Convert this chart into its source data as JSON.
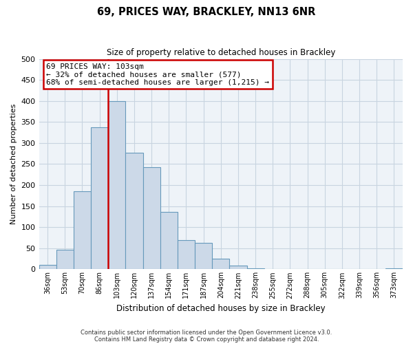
{
  "title": "69, PRICES WAY, BRACKLEY, NN13 6NR",
  "subtitle": "Size of property relative to detached houses in Brackley",
  "xlabel": "Distribution of detached houses by size in Brackley",
  "ylabel": "Number of detached properties",
  "bar_labels": [
    "36sqm",
    "53sqm",
    "70sqm",
    "86sqm",
    "103sqm",
    "120sqm",
    "137sqm",
    "154sqm",
    "171sqm",
    "187sqm",
    "204sqm",
    "221sqm",
    "238sqm",
    "255sqm",
    "272sqm",
    "288sqm",
    "305sqm",
    "322sqm",
    "339sqm",
    "356sqm",
    "373sqm"
  ],
  "bar_values": [
    10,
    46,
    185,
    338,
    400,
    277,
    242,
    137,
    70,
    62,
    25,
    8,
    2,
    1,
    1,
    0,
    0,
    0,
    0,
    0,
    2
  ],
  "bar_color": "#ccd9e8",
  "bar_edge_color": "#6699bb",
  "vline_x_index": 4,
  "vline_color": "#cc0000",
  "ylim": [
    0,
    500
  ],
  "yticks": [
    0,
    50,
    100,
    150,
    200,
    250,
    300,
    350,
    400,
    450,
    500
  ],
  "annotation_title": "69 PRICES WAY: 103sqm",
  "annotation_line1": "← 32% of detached houses are smaller (577)",
  "annotation_line2": "68% of semi-detached houses are larger (1,215) →",
  "annotation_box_color": "#ffffff",
  "annotation_box_edge": "#cc0000",
  "footer1": "Contains HM Land Registry data © Crown copyright and database right 2024.",
  "footer2": "Contains public sector information licensed under the Open Government Licence v3.0.",
  "background_color": "#ffffff",
  "plot_bg_color": "#eef3f8",
  "grid_color": "#c8d4e0"
}
